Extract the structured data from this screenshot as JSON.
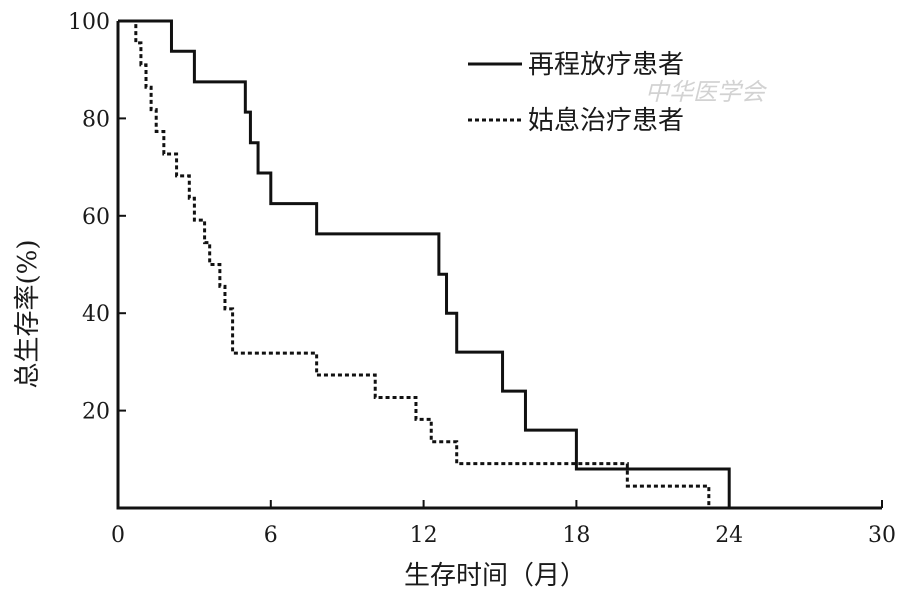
{
  "chart_data": {
    "type": "line",
    "title": "",
    "xlabel": "生存时间（月）",
    "ylabel": "总生存率(%)",
    "xlim": [
      0,
      30
    ],
    "ylim": [
      0,
      100
    ],
    "xticks": [
      0,
      6,
      12,
      18,
      24,
      30
    ],
    "yticks": [
      20,
      40,
      60,
      80,
      100
    ],
    "grid": false,
    "legend_position": "top-right",
    "step": true,
    "series": [
      {
        "name": "再程放疗患者",
        "style": "solid",
        "color": "#111111",
        "x": [
          0,
          2.1,
          3.0,
          5.0,
          5.2,
          5.5,
          6.0,
          7.8,
          12.6,
          12.9,
          13.3,
          15.1,
          16.0,
          18.0,
          24.0
        ],
        "y": [
          100,
          93.8,
          87.5,
          81.3,
          75.0,
          68.8,
          62.5,
          56.3,
          48.0,
          40.0,
          32.0,
          24.0,
          16.0,
          8.0,
          0
        ]
      },
      {
        "name": "姑息治疗患者",
        "style": "dashed",
        "color": "#111111",
        "x": [
          0,
          0.7,
          0.9,
          1.1,
          1.3,
          1.5,
          1.8,
          2.3,
          2.8,
          3.0,
          3.4,
          3.6,
          4.0,
          4.2,
          4.5,
          7.8,
          10.1,
          11.7,
          12.3,
          13.3,
          20.0,
          23.2
        ],
        "y": [
          100,
          95.5,
          91.0,
          86.4,
          81.8,
          77.3,
          72.7,
          68.2,
          63.6,
          59.1,
          54.5,
          50.0,
          45.5,
          40.9,
          31.8,
          27.3,
          22.7,
          18.2,
          13.6,
          9.1,
          4.5,
          0
        ]
      }
    ],
    "watermark": "中华医学会"
  }
}
